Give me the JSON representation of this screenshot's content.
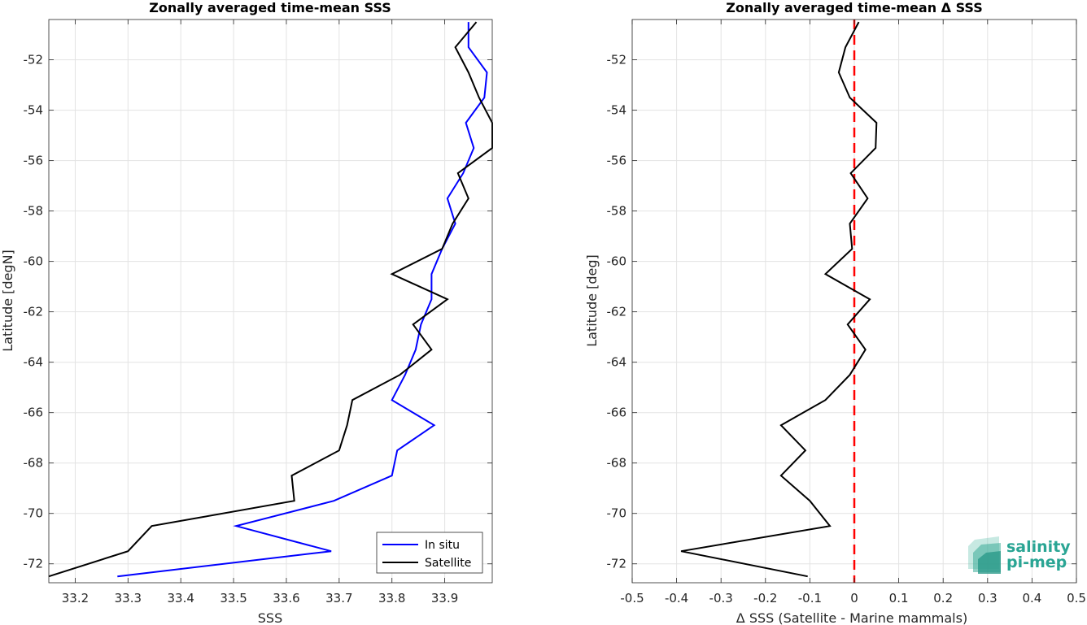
{
  "logo": {
    "line1": "salinity",
    "line2": "pi-mep"
  },
  "chart_data": [
    {
      "type": "line",
      "title": "Zonally averaged time-mean SSS",
      "xlabel": "SSS",
      "ylabel": "Latitude [degN]",
      "xlim": [
        33.15,
        33.99
      ],
      "ylim": [
        -72.75,
        -50.4
      ],
      "x_ticks": [
        33.2,
        33.3,
        33.4,
        33.5,
        33.6,
        33.7,
        33.8,
        33.9
      ],
      "y_ticks": [
        -52,
        -54,
        -56,
        -58,
        -60,
        -62,
        -64,
        -66,
        -68,
        -70,
        -72
      ],
      "grid": true,
      "legend": {
        "placement": "bottom-right",
        "entries": [
          "In situ",
          "Satellite"
        ]
      },
      "series": [
        {
          "name": "In situ",
          "color": "#0000ff",
          "lat": [
            -50.5,
            -51.5,
            -52.5,
            -53.5,
            -54.5,
            -55.5,
            -56.5,
            -57.5,
            -58.5,
            -59.5,
            -60.5,
            -61.5,
            -62.5,
            -63.5,
            -64.5,
            -65.5,
            -66.5,
            -67.5,
            -68.5,
            -69.5,
            -70.5,
            -71.5,
            -72.5
          ],
          "sss": [
            33.945,
            33.945,
            33.98,
            33.975,
            33.94,
            33.955,
            33.935,
            33.905,
            33.92,
            33.895,
            33.875,
            33.875,
            33.855,
            33.845,
            33.825,
            33.8,
            33.88,
            33.81,
            33.8,
            33.69,
            33.505,
            33.685,
            33.28
          ]
        },
        {
          "name": "Satellite",
          "color": "#000000",
          "lat": [
            -50.5,
            -51.5,
            -52.5,
            -53.5,
            -54.5,
            -55.5,
            -56.5,
            -57.5,
            -58.5,
            -59.5,
            -60.5,
            -61.5,
            -62.5,
            -63.5,
            -64.5,
            -65.5,
            -66.5,
            -67.5,
            -68.5,
            -69.5,
            -70.5,
            -71.5,
            -72.5
          ],
          "sss": [
            33.96,
            33.92,
            33.945,
            33.965,
            33.99,
            33.99,
            33.925,
            33.945,
            33.915,
            33.895,
            33.8,
            33.905,
            33.84,
            33.875,
            33.815,
            33.725,
            33.715,
            33.7,
            33.61,
            33.615,
            33.345,
            33.3,
            33.15
          ]
        }
      ]
    },
    {
      "type": "line",
      "title": "Zonally averaged time-mean Δ SSS",
      "xlabel": "Δ SSS (Satellite - Marine mammals)",
      "ylabel": "Latitude [deg]",
      "xlim": [
        -0.5,
        0.5
      ],
      "ylim": [
        -72.75,
        -50.4
      ],
      "x_ticks": [
        -0.5,
        -0.4,
        -0.3,
        -0.2,
        -0.1,
        0,
        0.1,
        0.2,
        0.3,
        0.4,
        0.5
      ],
      "x_tick_labels": [
        "-0.5",
        "-0.4",
        "-0.3",
        "-0.2",
        "-0.1",
        "0",
        "0.1",
        "0.2",
        "0.3",
        "0.4",
        "0.5"
      ],
      "y_ticks": [
        -52,
        -54,
        -56,
        -58,
        -60,
        -62,
        -64,
        -66,
        -68,
        -70,
        -72
      ],
      "grid": true,
      "reference_line": {
        "x": 0,
        "color": "#ff0000",
        "style": "dashed"
      },
      "series": [
        {
          "color": "#000000",
          "lat": [
            -50.5,
            -51.5,
            -52.5,
            -53.5,
            -54.5,
            -55.5,
            -56.5,
            -57.5,
            -58.5,
            -59.5,
            -60.5,
            -61.5,
            -62.5,
            -63.5,
            -64.5,
            -65.5,
            -66.5,
            -67.5,
            -68.5,
            -69.5,
            -70.5,
            -71.5,
            -72.5
          ],
          "dsss": [
            0.01,
            -0.02,
            -0.035,
            -0.01,
            0.05,
            0.048,
            -0.008,
            0.03,
            -0.01,
            -0.005,
            -0.065,
            0.035,
            -0.015,
            0.025,
            -0.01,
            -0.065,
            -0.165,
            -0.11,
            -0.165,
            -0.1,
            -0.055,
            -0.39,
            -0.105
          ]
        }
      ]
    }
  ]
}
